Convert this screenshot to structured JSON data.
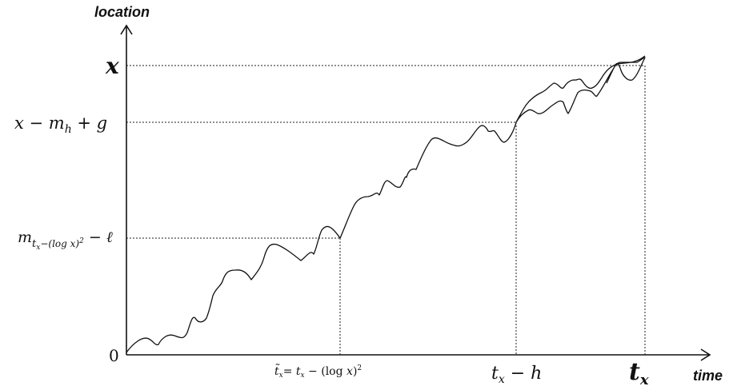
{
  "axes": {
    "y_title": "location",
    "x_title": "time",
    "origin": "0"
  },
  "y_levels": {
    "x": {
      "main": "x"
    },
    "x_minus_mh_plus_g": {
      "a": "x − m",
      "sub": "h",
      "b": " + g"
    },
    "m_shift": {
      "a": "m",
      "sub": "t",
      "subsub": "x",
      "subrest": "−(log x)",
      "subsup": "2",
      "b": " − ℓ"
    }
  },
  "x_levels": {
    "t_tilde": {
      "a": "t̃",
      "sub1": "x",
      "mid": "= t",
      "sub2": "x",
      "b": " − (log ",
      "c": "x",
      "d": ")",
      "sup": "2"
    },
    "t_minus_h": {
      "a": "t",
      "sub": "x",
      "b": " − h"
    },
    "t_x": {
      "a": "t",
      "sub": "x"
    }
  }
}
